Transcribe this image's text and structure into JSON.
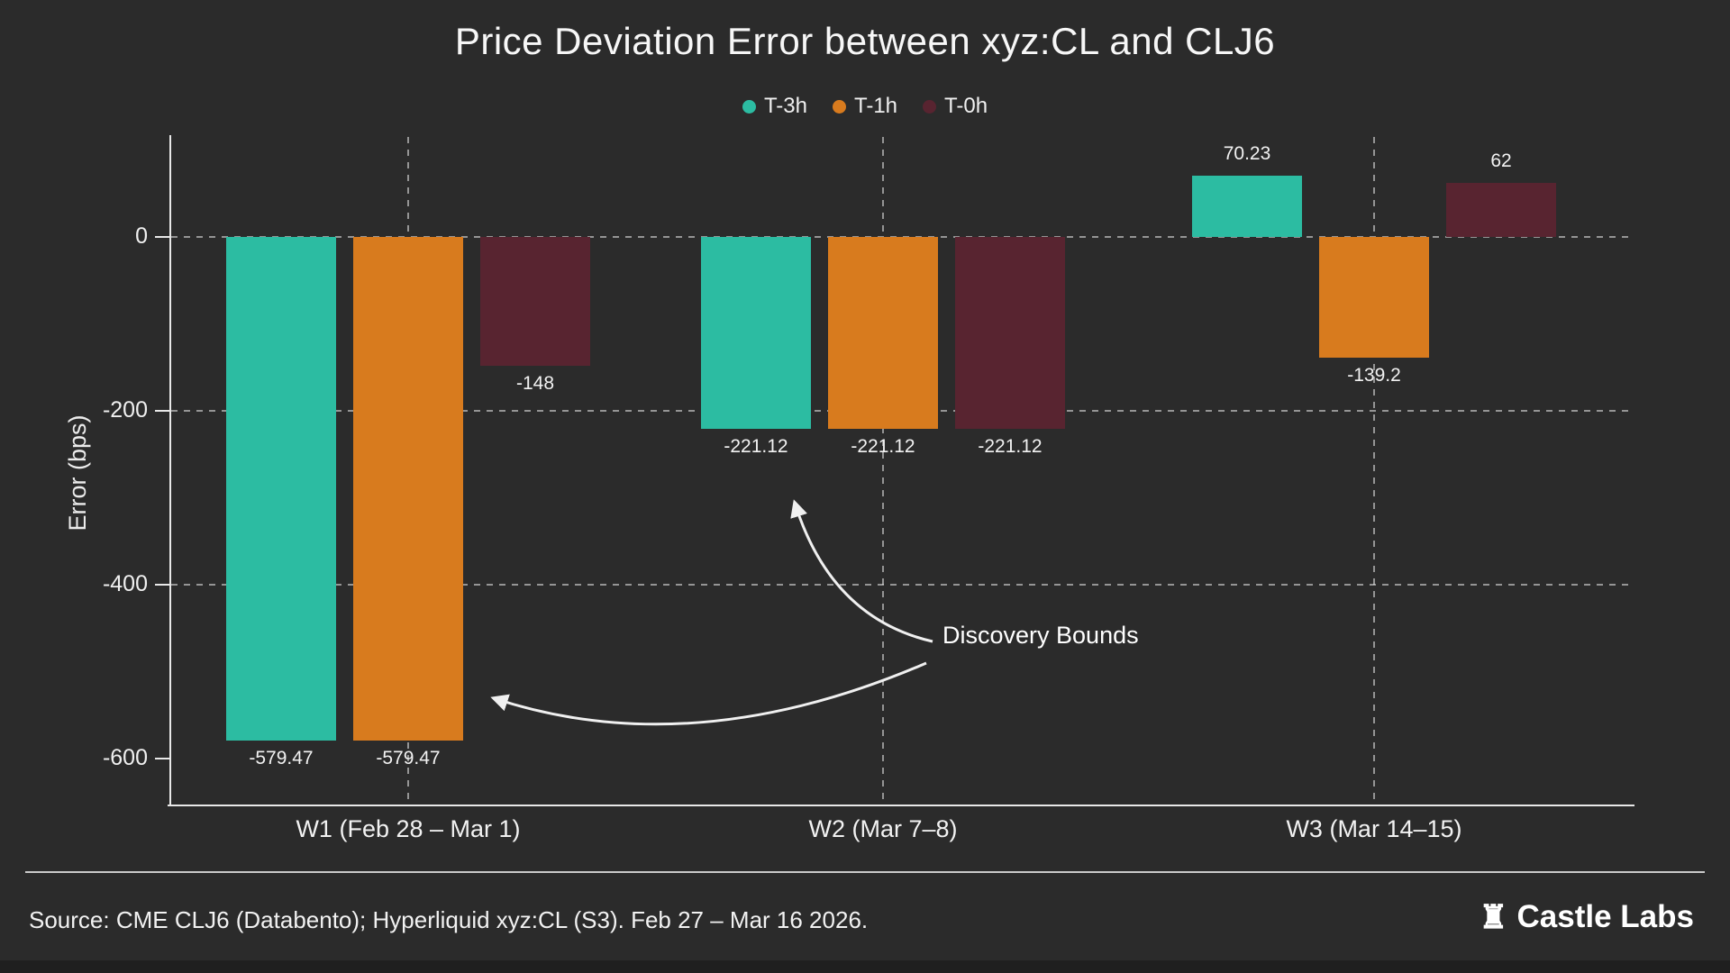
{
  "chart_data": {
    "type": "bar",
    "title": "Price Deviation Error between xyz:CL and CLJ6",
    "xlabel": "",
    "ylabel": "Error (bps)",
    "categories": [
      "W1 (Feb 28 – Mar 1)",
      "W2 (Mar 7–8)",
      "W3 (Mar 14–15)"
    ],
    "series": [
      {
        "name": "T-3h",
        "color": "#2cbca2",
        "values": [
          -579.47,
          -221.12,
          70.23
        ],
        "labels": [
          "-579.47",
          "-221.12",
          "70.23"
        ]
      },
      {
        "name": "T-1h",
        "color": "#d87b1e",
        "values": [
          -579.47,
          -221.12,
          -139.2
        ],
        "labels": [
          "-579.47",
          "-221.12",
          "-139.2"
        ]
      },
      {
        "name": "T-0h",
        "color": "#582430",
        "values": [
          -148,
          -221.12,
          62
        ],
        "labels": [
          "-148",
          "-221.12",
          "62"
        ]
      }
    ],
    "yticks": [
      0,
      -200,
      -400,
      -600
    ],
    "ylim": [
      -650,
      115
    ],
    "grid": true,
    "legend_position": "top",
    "annotation": "Discovery Bounds"
  },
  "colors": {
    "background": "#2b2b2b",
    "axis": "#e8e8e8",
    "text": "#f2f2f2"
  },
  "footer": {
    "source": "Source: CME CLJ6 (Databento); Hyperliquid xyz:CL (S3). Feb 27 – Mar 16 2026.",
    "brand": "Castle Labs",
    "brand_icon_glyph": "♜"
  }
}
